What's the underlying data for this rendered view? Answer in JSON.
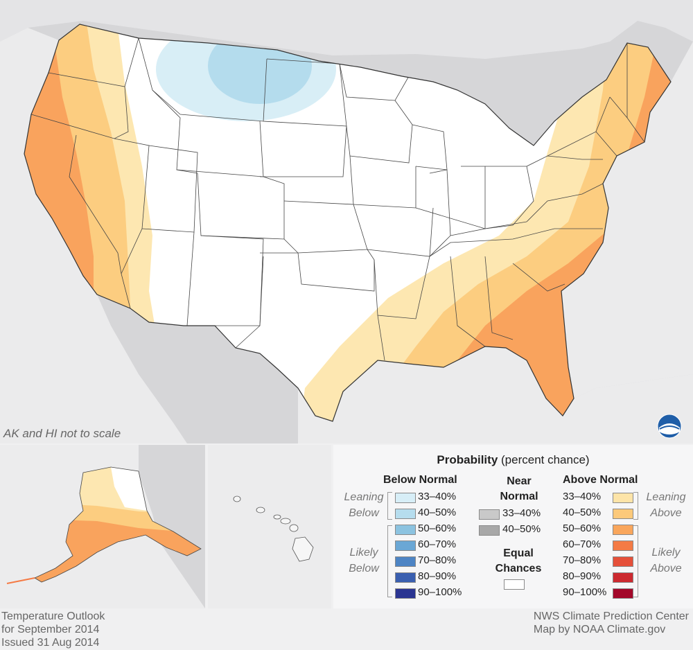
{
  "map": {
    "note": "AK and HI not to scale",
    "colors": {
      "land_background": "#d4d4d6",
      "water": "#e9e9ea",
      "equal_chances": "#ffffff",
      "below_33_40": "#d8eef6",
      "below_40_50": "#b4dced",
      "above_33_40": "#fde7b1",
      "above_40_50": "#fccd80",
      "above_50_60": "#f9a35d",
      "above_60_70": "#f57a44"
    }
  },
  "legend": {
    "title_bold": "Probability",
    "title_rest": " (percent chance)",
    "below": {
      "heading": "Below Normal",
      "leaning_label_1": "Leaning",
      "leaning_label_2": "Below",
      "likely_label_1": "Likely",
      "likely_label_2": "Below",
      "items": [
        {
          "label": "33–40%",
          "color": "#d7eef7"
        },
        {
          "label": "40–50%",
          "color": "#b6ddee"
        },
        {
          "label": "50–60%",
          "color": "#8cc3e0"
        },
        {
          "label": "60–70%",
          "color": "#6aa7d5"
        },
        {
          "label": "70–80%",
          "color": "#4d84c4"
        },
        {
          "label": "80–90%",
          "color": "#3a5fb0"
        },
        {
          "label": "90–100%",
          "color": "#2b3592"
        }
      ]
    },
    "near": {
      "heading_1": "Near",
      "heading_2": "Normal",
      "items": [
        {
          "label": "33–40%",
          "color": "#c9c9c9"
        },
        {
          "label": "40–50%",
          "color": "#a8a8a8"
        }
      ],
      "equal_1": "Equal",
      "equal_2": "Chances",
      "equal_color": "#ffffff"
    },
    "above": {
      "heading": "Above Normal",
      "leaning_label_1": "Leaning",
      "leaning_label_2": "Above",
      "likely_label_1": "Likely",
      "likely_label_2": "Above",
      "items": [
        {
          "label": "33–40%",
          "color": "#fde4a8"
        },
        {
          "label": "40–50%",
          "color": "#fcc97a"
        },
        {
          "label": "50–60%",
          "color": "#f9a65c"
        },
        {
          "label": "60–70%",
          "color": "#f47b45"
        },
        {
          "label": "70–80%",
          "color": "#e5503a"
        },
        {
          "label": "80–90%",
          "color": "#cc2a30"
        },
        {
          "label": "90–100%",
          "color": "#a3082a"
        }
      ]
    }
  },
  "footer": {
    "left_1": "Temperature Outlook",
    "left_2": "for September 2014",
    "left_3": "Issued 31 Aug 2014",
    "right_1": "NWS Climate Prediction Center",
    "right_2": "Map by NOAA Climate.gov"
  },
  "logo_icon": "noaa-logo-icon"
}
